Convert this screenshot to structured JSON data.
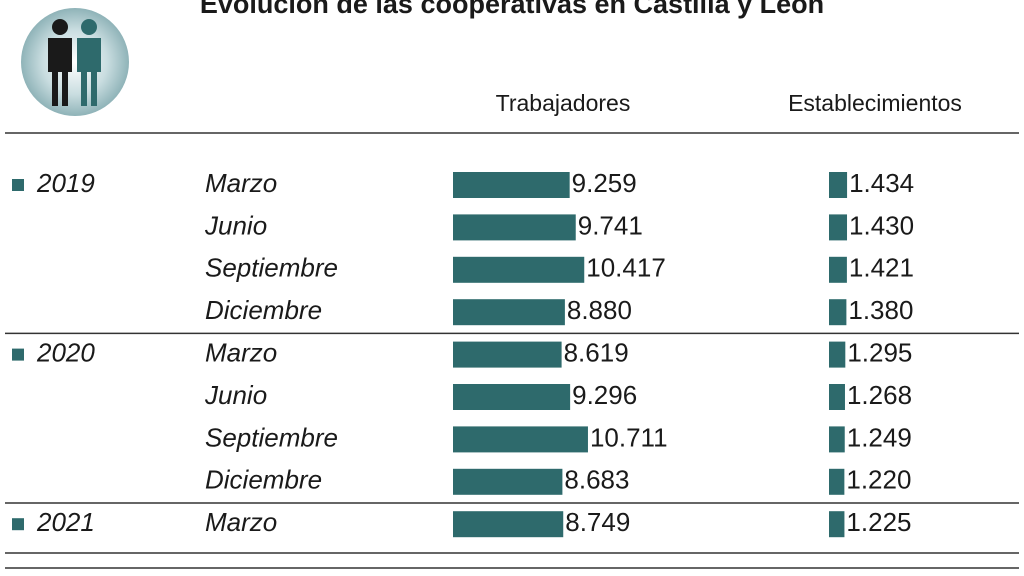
{
  "chart_data": {
    "type": "bar",
    "title": "Evolución de las cooperativas en Castilla y León",
    "years": [
      "2019",
      null,
      null,
      null,
      "2020",
      null,
      null,
      null,
      "2021"
    ],
    "categories": [
      "Marzo",
      "Junio",
      "Septiembre",
      "Diciembre",
      "Marzo",
      "Junio",
      "Septiembre",
      "Diciembre",
      "Marzo"
    ],
    "series": [
      {
        "name": "Trabajadores",
        "color": "#2e6a6c",
        "values": [
          9259,
          9741,
          10417,
          8880,
          8619,
          9296,
          10711,
          8683,
          8749
        ],
        "value_labels": [
          "9.259",
          "9.741",
          "10.417",
          "8.880",
          "8.619",
          "9.296",
          "10.711",
          "8.683",
          "8.749"
        ]
      },
      {
        "name": "Establecimientos",
        "color": "#2e6a6c",
        "values": [
          1434,
          1430,
          1421,
          1380,
          1295,
          1268,
          1249,
          1220,
          1225
        ],
        "value_labels": [
          "1.434",
          "1.430",
          "1.421",
          "1.380",
          "1.295",
          "1.268",
          "1.249",
          "1.220",
          "1.225"
        ]
      }
    ]
  }
}
